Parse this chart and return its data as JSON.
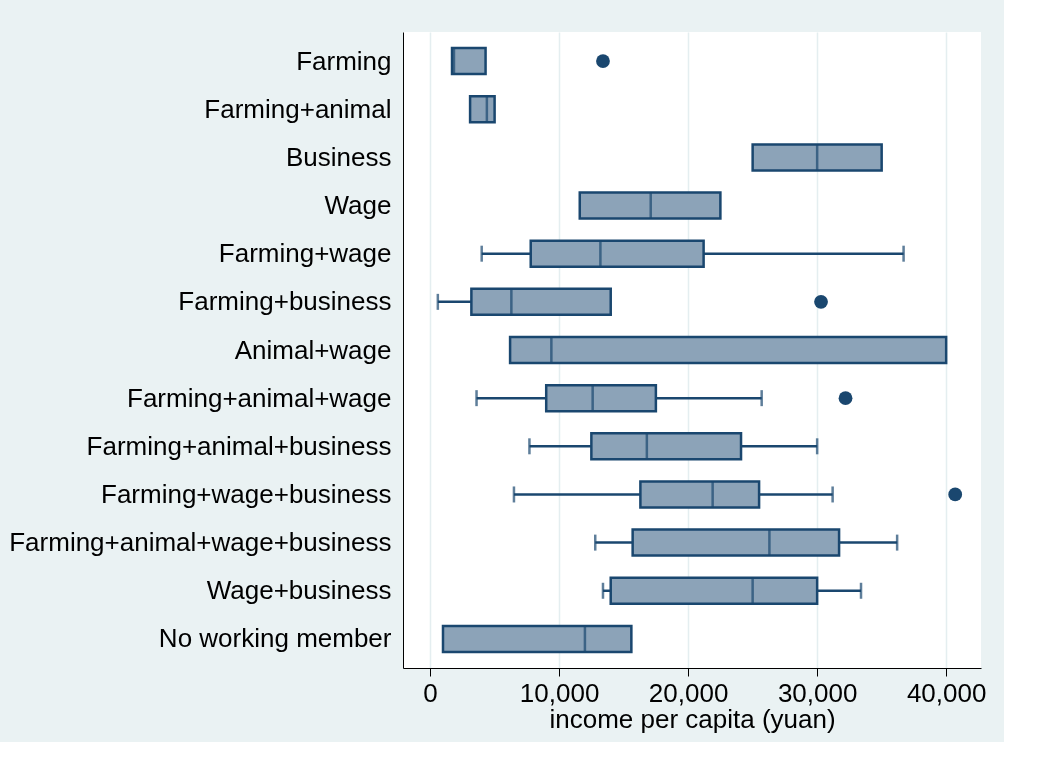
{
  "chart_data": {
    "type": "box",
    "orientation": "horizontal",
    "xlabel": "income per capita (yuan)",
    "categories": [
      "Farming",
      "Farming+animal",
      "Business",
      "Wage",
      "Farming+wage",
      "Farming+business",
      "Animal+wage",
      "Farming+animal+wage",
      "Farming+animal+business",
      "Farming+wage+business",
      "Farming+animal+wage+business",
      "Wage+business",
      "No working member"
    ],
    "boxes": [
      {
        "low": 1700,
        "q1": 1700,
        "median": 1850,
        "q3": 4300,
        "high": 4300,
        "outliers": [
          13400
        ]
      },
      {
        "low": 3100,
        "q1": 3100,
        "median": 4400,
        "q3": 5000,
        "high": 5000
      },
      {
        "low": 25000,
        "q1": 25000,
        "median": 30000,
        "q3": 35000,
        "high": 35000
      },
      {
        "low": 11600,
        "q1": 11600,
        "median": 17100,
        "q3": 22500,
        "high": 22500
      },
      {
        "low": 4000,
        "q1": 7800,
        "median": 13200,
        "q3": 21200,
        "high": 36700
      },
      {
        "low": 600,
        "q1": 3200,
        "median": 6300,
        "q3": 14000,
        "high": 14000,
        "outliers": [
          30300
        ]
      },
      {
        "low": 6200,
        "q1": 6200,
        "median": 9400,
        "q3": 40000,
        "high": 40000
      },
      {
        "low": 3600,
        "q1": 9000,
        "median": 12600,
        "q3": 17500,
        "high": 25700,
        "outliers": [
          32200
        ]
      },
      {
        "low": 7700,
        "q1": 12500,
        "median": 16800,
        "q3": 24100,
        "high": 30000
      },
      {
        "low": 6500,
        "q1": 16300,
        "median": 21900,
        "q3": 25500,
        "high": 31200,
        "outliers": [
          40700
        ]
      },
      {
        "low": 12800,
        "q1": 15700,
        "median": 26300,
        "q3": 31700,
        "high": 36200
      },
      {
        "low": 13400,
        "q1": 14000,
        "median": 25000,
        "q3": 30000,
        "high": 33400
      },
      {
        "low": 1000,
        "q1": 1000,
        "median": 12000,
        "q3": 15600,
        "high": 15600
      }
    ],
    "color": "#8ca3b8",
    "xlim": [
      -2100,
      42700
    ],
    "xticks": [
      0,
      {
        "value": 10000,
        "label": "10,000"
      },
      {
        "value": 20000,
        "label": "20,000"
      },
      {
        "value": 30000,
        "label": "30,000"
      },
      {
        "value": 40000,
        "label": "40,000"
      }
    ],
    "grid": "x"
  }
}
